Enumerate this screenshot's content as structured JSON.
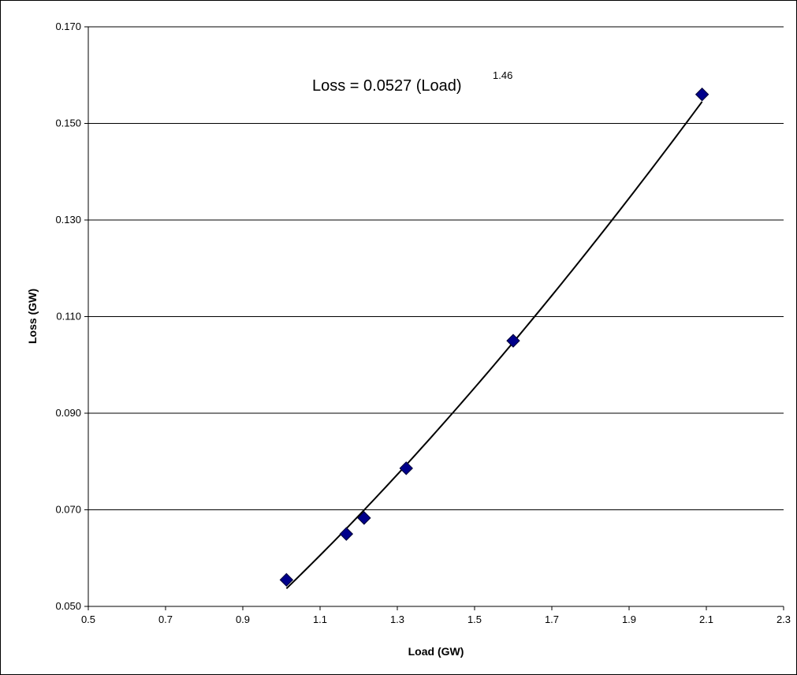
{
  "chart_data": {
    "type": "scatter",
    "xlabel": "Load (GW)",
    "ylabel": "Loss (GW)",
    "xlim": [
      0.5,
      2.3
    ],
    "ylim": [
      0.05,
      0.17
    ],
    "x_ticks": [
      "0.5",
      "0.7",
      "0.9",
      "1.1",
      "1.3",
      "1.5",
      "1.7",
      "1.9",
      "2.1",
      "2.3"
    ],
    "y_ticks": [
      "0.050",
      "0.070",
      "0.090",
      "0.110",
      "0.130",
      "0.150",
      "0.170"
    ],
    "grid": "horizontal major gridlines",
    "legend": "none",
    "series": [
      {
        "marker": "diamond",
        "color": "#00008B",
        "points": [
          {
            "x": 1.013,
            "y": 0.0555
          },
          {
            "x": 1.168,
            "y": 0.065
          },
          {
            "x": 1.214,
            "y": 0.0683
          },
          {
            "x": 1.323,
            "y": 0.0786
          },
          {
            "x": 1.6,
            "y": 0.105
          },
          {
            "x": 2.089,
            "y": 0.156
          }
        ]
      }
    ],
    "trendline": {
      "type": "power",
      "coefficient": 0.0527,
      "exponent": 1.46,
      "x_range": [
        1.013,
        2.089
      ],
      "color": "#000000"
    },
    "annotation": {
      "main": "Loss  = 0.0527 (Load)",
      "exponent": "1.46"
    }
  }
}
